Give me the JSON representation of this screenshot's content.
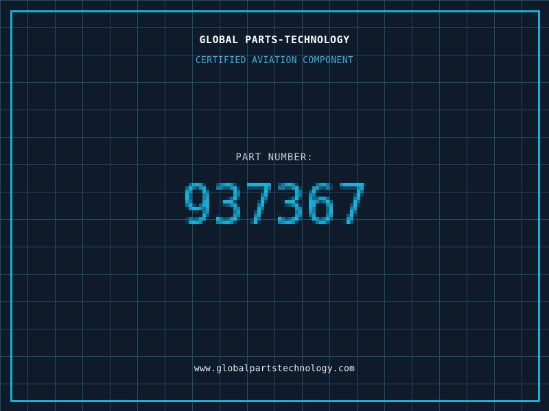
{
  "brand": {
    "title": "GLOBAL PARTS-TECHNOLOGY",
    "subtitle": "CERTIFIED AVIATION COMPONENT"
  },
  "part": {
    "label": "PART NUMBER:",
    "number": "937367"
  },
  "footer": {
    "url": "www.globalpartstechnology.com"
  },
  "colors": {
    "background": "#0f1a2b",
    "grid_line": "#1d4e63",
    "frame_cyan": "#12b3da",
    "accent_cyan": "#18b4dc",
    "title_text": "#f5f7f8",
    "subtitle_cyan": "#3ab4d8",
    "muted_text": "#c2cbd3",
    "footer_text": "#e8edf0"
  }
}
